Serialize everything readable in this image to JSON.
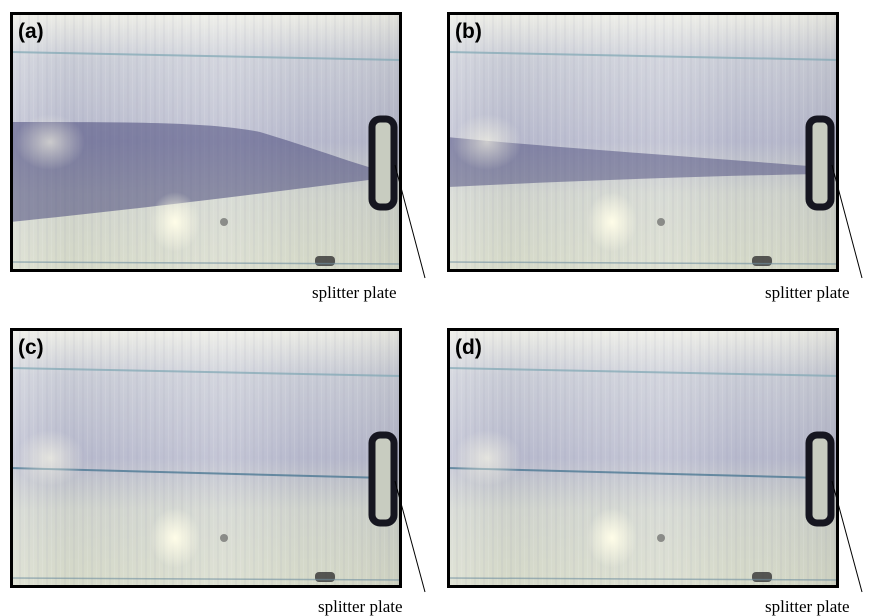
{
  "panels": [
    {
      "label": "(a)",
      "annotation": "splitter plate"
    },
    {
      "label": "(b)",
      "annotation": "splitter plate"
    },
    {
      "label": "(c)",
      "annotation": "splitter plate"
    },
    {
      "label": "(d)",
      "annotation": "splitter plate"
    }
  ]
}
